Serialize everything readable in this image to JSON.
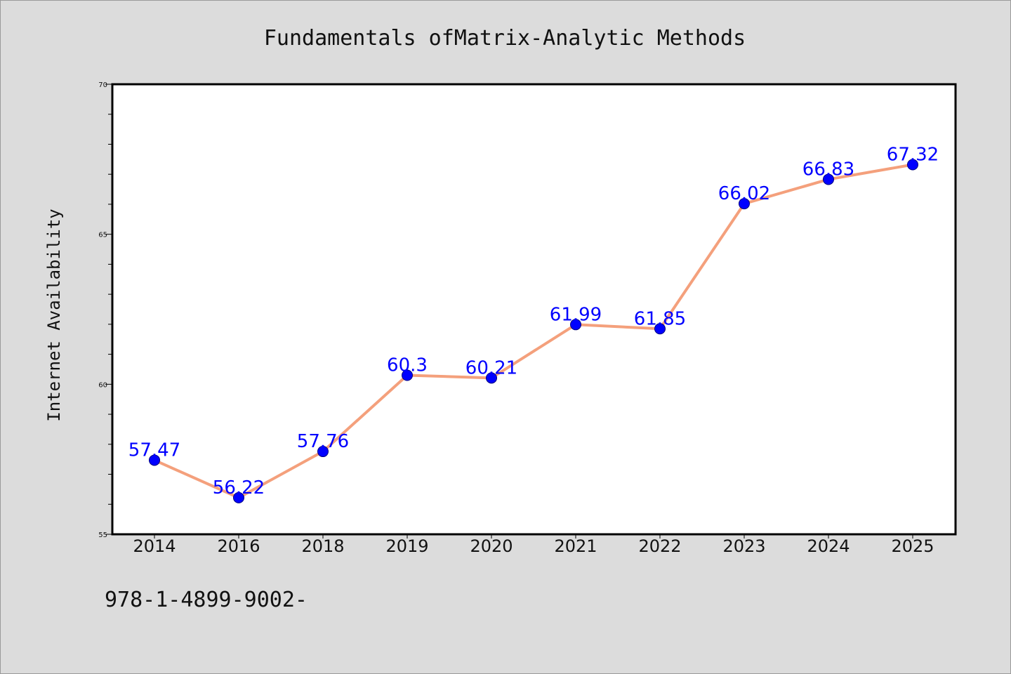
{
  "chart_data": {
    "type": "line",
    "title": "Fundamentals ofMatrix-Analytic Methods",
    "xlabel": "",
    "ylabel": "Internet Availability",
    "categories": [
      "2014",
      "2016",
      "2018",
      "2019",
      "2020",
      "2021",
      "2022",
      "2023",
      "2024",
      "2025"
    ],
    "series": [
      {
        "values": [
          57.47,
          56.22,
          57.76,
          60.3,
          60.21,
          61.99,
          61.85,
          66.02,
          66.83,
          67.32
        ],
        "data_labels": [
          "57.47",
          "56.22",
          "57.76",
          "60.3",
          "60.21",
          "61.99",
          "61.85",
          "66.02",
          "66.83",
          "67.32"
        ],
        "line_color": "#f4a07c",
        "marker_color": "#0000ff"
      }
    ],
    "ylim": [
      55,
      70
    ],
    "y_major_ticks": [
      55,
      60,
      65,
      70
    ],
    "y_minor_step": 1,
    "grid": false,
    "legend": "none"
  },
  "footer": {
    "text": "978-1-4899-9002-"
  },
  "colors": {
    "background": "#dcdcdc",
    "plot_background": "#ffffff",
    "axis": "#000000",
    "label": "#0000ff"
  }
}
